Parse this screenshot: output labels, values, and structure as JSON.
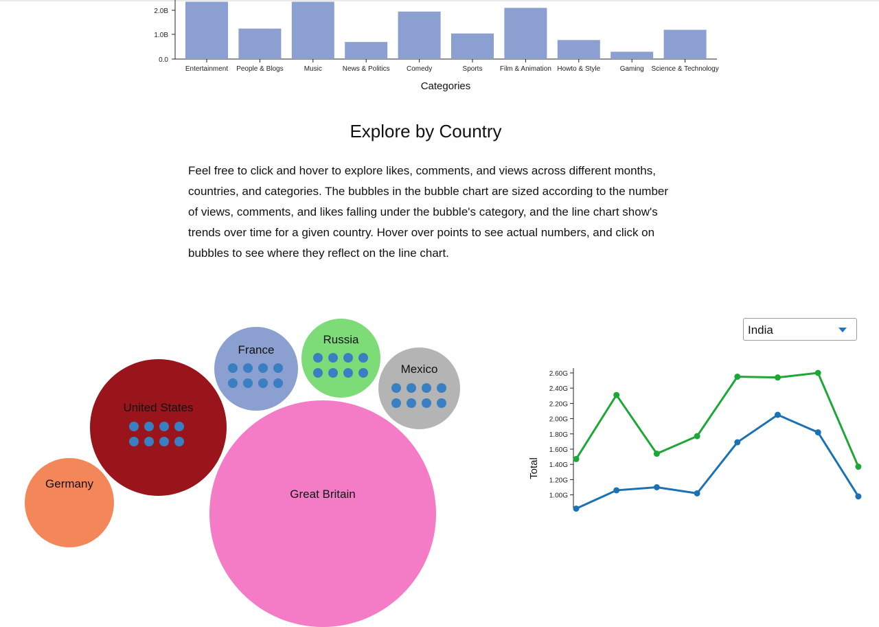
{
  "bar_chart": {
    "xlabel": "Categories",
    "y_ticks": [
      "2.0B",
      "1.0B",
      "0.0"
    ],
    "bar_color": "#8c9fd1"
  },
  "section": {
    "title": "Explore by Country",
    "intro": "Feel free to click and hover to explore likes, comments, and views across different months, countries, and categories. The bubbles in the bubble chart are sized according to the number of views, comments, and likes falling under the bubble's category, and the line chart show's trends over time for a given country. Hover over points to see actual numbers, and click on bubbles to see where they reflect on the line chart."
  },
  "bubbles": [
    {
      "label": "France",
      "color": "#8c9fd1"
    },
    {
      "label": "Russia",
      "color": "#7ddb78"
    },
    {
      "label": "Mexico",
      "color": "#b4b4b4"
    },
    {
      "label": "United States",
      "color": "#9a151b"
    },
    {
      "label": "Germany",
      "color": "#f4875a"
    },
    {
      "label": "Great Britain",
      "color": "#f47cc6"
    }
  ],
  "country_select": {
    "selected": "India"
  },
  "line_chart": {
    "ylabel": "Total",
    "y_ticks": [
      "2.60G",
      "2.40G",
      "2.20G",
      "2.00G",
      "1.80G",
      "1.60G",
      "1.40G",
      "1.20G",
      "1.00G"
    ]
  },
  "chart_data": [
    {
      "type": "bar",
      "categories": [
        "Entertainment",
        "People & Blogs",
        "Music",
        "News & Politics",
        "Comedy",
        "Sports",
        "Film & Animation",
        "Howto & Style",
        "Gaming",
        "Science & Technology"
      ],
      "values": [
        2.35,
        1.25,
        2.35,
        0.7,
        1.95,
        1.05,
        2.1,
        0.78,
        0.3,
        1.2
      ],
      "xlabel": "Categories",
      "ylabel": "",
      "ylim": [
        0,
        2.35
      ],
      "unit": "B"
    },
    {
      "type": "line",
      "ylabel": "Total",
      "ylim": [
        1.0,
        2.6
      ],
      "unit": "G",
      "x": [
        1,
        2,
        3,
        4,
        5,
        6,
        7,
        8
      ],
      "series": [
        {
          "color": "#1da737",
          "values": [
            1.47,
            2.31,
            1.54,
            1.77,
            2.55,
            2.54,
            2.6,
            1.37
          ]
        },
        {
          "color": "#1a72b5",
          "values": [
            0.82,
            1.06,
            1.1,
            1.02,
            1.69,
            2.05,
            1.82,
            0.98
          ]
        }
      ]
    }
  ]
}
